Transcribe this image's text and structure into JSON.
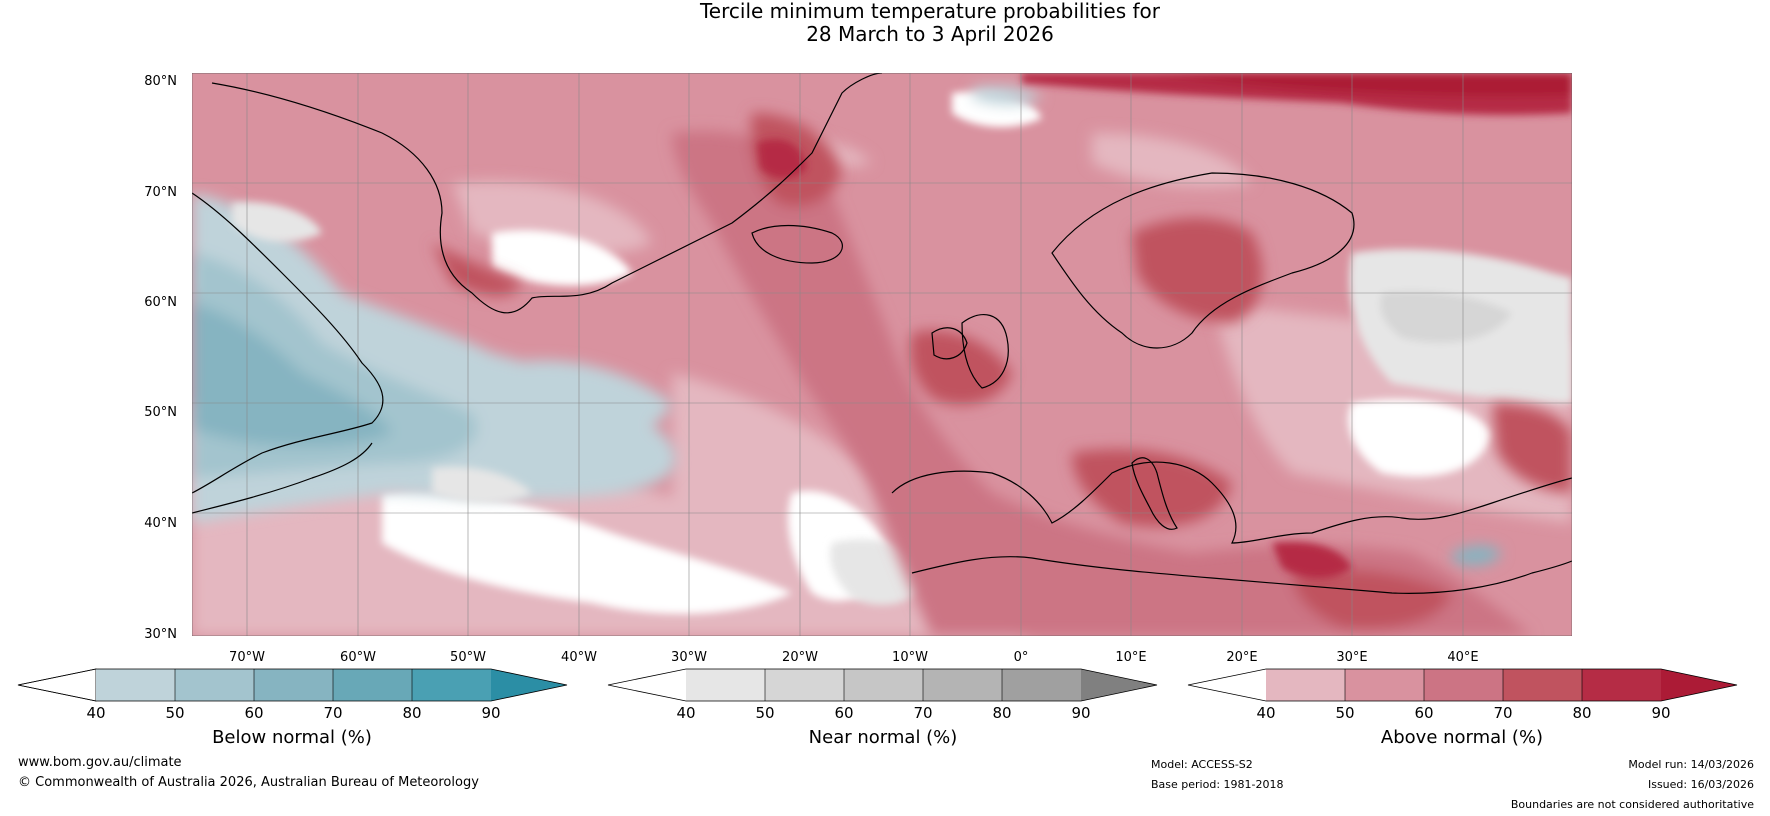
{
  "title": {
    "line1": "Tercile minimum temperature probabilities for",
    "line2": "28 March to 3 April 2026"
  },
  "map": {
    "lat_labels": [
      "80°N",
      "70°N",
      "60°N",
      "50°N",
      "40°N",
      "30°N"
    ],
    "lon_labels": [
      "70°W",
      "60°W",
      "50°W",
      "40°W",
      "30°W",
      "20°W",
      "10°W",
      "0°",
      "10°E",
      "20°E",
      "30°E",
      "40°E"
    ],
    "colors": {
      "below": [
        "#bfd3da",
        "#a3c4ce",
        "#86b4c1",
        "#68a8b7",
        "#4aa0b3",
        "#2b8ea5"
      ],
      "near": [
        "#e6e6e6",
        "#d6d6d6",
        "#c6c6c6",
        "#b4b4b4",
        "#a0a0a0",
        "#808080"
      ],
      "above": [
        "#e4b7c0",
        "#d9929f",
        "#cc7484",
        "#c0535f",
        "#b52c45",
        "#ac1b36"
      ]
    }
  },
  "colorbars": [
    {
      "name": "below",
      "title": "Below normal (%)",
      "ticks": [
        "40",
        "50",
        "60",
        "70",
        "80",
        "90"
      ]
    },
    {
      "name": "near",
      "title": "Near normal (%)",
      "ticks": [
        "40",
        "50",
        "60",
        "70",
        "80",
        "90"
      ]
    },
    {
      "name": "above",
      "title": "Above normal (%)",
      "ticks": [
        "40",
        "50",
        "60",
        "70",
        "80",
        "90"
      ]
    }
  ],
  "footer": {
    "website": "www.bom.gov.au/climate",
    "copyright": "© Commonwealth of Australia 2026, Australian Bureau of Meteorology",
    "model": "Model: ACCESS-S2",
    "base_period": "Base period: 1981-2018",
    "model_run": "Model run: 14/03/2026",
    "issued": "Issued: 16/03/2026",
    "disclaimer": "Boundaries are not considered authoritative"
  }
}
